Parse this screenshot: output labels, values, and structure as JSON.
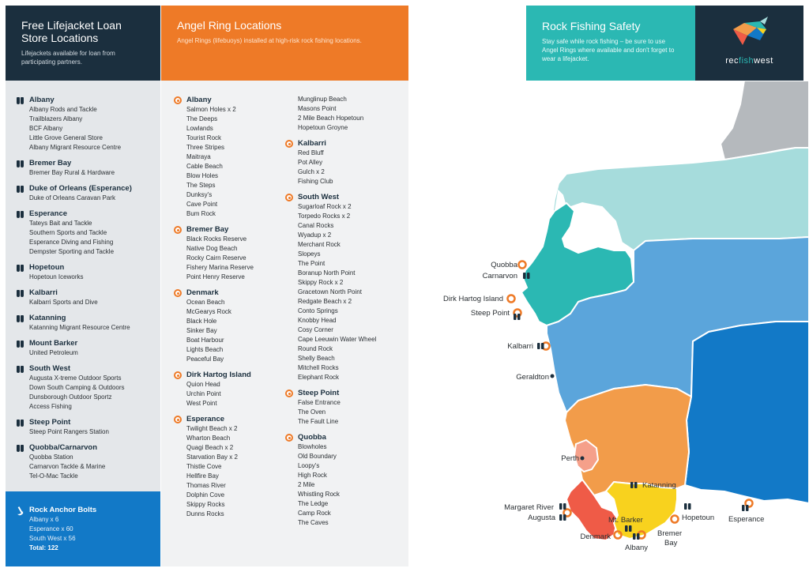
{
  "lifejacket": {
    "title": "Free Lifejacket Loan Store Locations",
    "subtitle": "Lifejackets available for loan from participating partners.",
    "groups": [
      {
        "name": "Albany",
        "items": [
          "Albany Rods and Tackle",
          "Trailblazers Albany",
          "BCF Albany",
          "Little Grove General Store",
          "Albany Migrant Resource Centre"
        ]
      },
      {
        "name": "Bremer Bay",
        "items": [
          "Bremer Bay Rural & Hardware"
        ]
      },
      {
        "name": "Duke of Orleans (Esperance)",
        "items": [
          "Duke of Orleans Caravan Park"
        ]
      },
      {
        "name": "Esperance",
        "items": [
          "Tateys Bait and Tackle",
          "Southern Sports and Tackle",
          "Esperance Diving and Fishing",
          "Dempster Sporting and Tackle"
        ]
      },
      {
        "name": "Hopetoun",
        "items": [
          "Hopetoun Iceworks"
        ]
      },
      {
        "name": "Kalbarri",
        "items": [
          "Kalbarri Sports and Dive"
        ]
      },
      {
        "name": "Katanning",
        "items": [
          "Katanning Migrant Resource Centre"
        ]
      },
      {
        "name": "Mount Barker",
        "items": [
          "United Petroleum"
        ]
      },
      {
        "name": "South West",
        "items": [
          "Augusta X-treme Outdoor Sports",
          "Down South Camping & Outdoors",
          "Dunsborough Outdoor Sportz",
          "Access Fishing"
        ]
      },
      {
        "name": "Steep Point",
        "items": [
          "Steep Point Rangers Station"
        ]
      },
      {
        "name": "Quobba/Carnarvon",
        "items": [
          "Quobba Station",
          "Carnarvon Tackle & Marine",
          "Tel-O-Mac Tackle"
        ]
      }
    ]
  },
  "anchor": {
    "title": "Rock Anchor Bolts",
    "items": [
      "Albany x 6",
      "Esperance x 60",
      "South West x 56"
    ],
    "total": "Total: 122"
  },
  "angel": {
    "title": "Angel Ring Locations",
    "subtitle": "Angel Rings (lifebuoys) installed at high-risk rock fishing locations.",
    "left_groups": [
      {
        "name": "Albany",
        "items": [
          "Salmon Holes x 2",
          "The Deeps",
          "Lowlands",
          "Tourist Rock",
          "Three Stripes",
          "Maitraya",
          "Cable Beach",
          "Blow Holes",
          "The Steps",
          "Dunksy's",
          "Cave Point",
          "Bum Rock"
        ]
      },
      {
        "name": "Bremer Bay",
        "items": [
          "Black Rocks Reserve",
          "Native Dog Beach",
          "Rocky Cairn Reserve",
          "Fishery Marina Reserve",
          "Point Henry Reserve"
        ]
      },
      {
        "name": "Denmark",
        "items": [
          "Ocean Beach",
          "McGearys Rock",
          "Black Hole",
          "Sinker Bay",
          "Boat Harbour",
          "Lights Beach",
          "Peaceful Bay"
        ]
      },
      {
        "name": "Dirk Hartog Island",
        "items": [
          "Quion Head",
          "Urchin Point",
          "West Point"
        ]
      },
      {
        "name": "Esperance",
        "items": [
          "Twilight Beach x 2",
          "Wharton Beach",
          "Quagi Beach x 2",
          "Starvation Bay x 2",
          "Thistle Cove",
          "Hellfire Bay",
          "Thomas River",
          "Dolphin Cove",
          "Skippy Rocks",
          "Dunns Rocks"
        ]
      }
    ],
    "right_top_items": [
      "Munglinup Beach",
      "Masons Point",
      "2 Mile Beach Hopetoun",
      "Hopetoun Groyne"
    ],
    "right_groups": [
      {
        "name": "Kalbarri",
        "items": [
          "Red Bluff",
          "Pot Alley",
          "Gulch x 2",
          "Fishing Club"
        ]
      },
      {
        "name": "South West",
        "items": [
          "Sugarloaf Rock x 2",
          "Torpedo Rocks x 2",
          "Canal Rocks",
          "Wyadup x 2",
          "Merchant Rock",
          "Slopeys",
          "The Point",
          "Boranup North Point",
          "Skippy Rock x 2",
          "Gracetown North Point",
          "Redgate Beach x 2",
          "Conto Springs",
          "Knobby Head",
          "Cosy Corner",
          "Cape Leeuwin Water Wheel",
          "Round Rock",
          "Shelly Beach",
          "Mitchell Rocks",
          "Elephant Rock"
        ]
      },
      {
        "name": "Steep Point",
        "items": [
          "False Entrance",
          "The Oven",
          "The Fault Line"
        ]
      },
      {
        "name": "Quobba",
        "items": [
          "Blowholes",
          "Old Boundary",
          "Loopy's",
          "High Rock",
          "2 Mile",
          "Whistling Rock",
          "The Ledge",
          "Camp Rock",
          "The Caves"
        ]
      }
    ]
  },
  "safety": {
    "title": "Rock Fishing Safety",
    "subtitle": "Stay safe while rock fishing – be sure to use Angel Rings where available and don't forget to wear a lifejacket."
  },
  "logo": {
    "part1": "rec",
    "part2": "fish",
    "part3": "west"
  },
  "map": {
    "labels": {
      "quobba": "Quobba",
      "carnarvon": "Carnarvon",
      "dirk": "Dirk Hartog Island",
      "steep": "Steep Point",
      "kalbarri": "Kalbarri",
      "geraldton": "Geraldton",
      "perth": "Perth",
      "katanning": "Katanning",
      "margaret": "Margaret River",
      "augusta": "Augusta",
      "mtbarker": "Mt. Barker",
      "hopetoun": "Hopetoun",
      "esperance": "Esperance",
      "denmark": "Denmark",
      "albany": "Albany",
      "bremer1": "Bremer",
      "bremer2": "Bay"
    },
    "colors": {
      "north": "#b5b9bd",
      "pilbara": "#a6dcdc",
      "gascoyne": "#2bb8b3",
      "midwest": "#5ba5db",
      "goldfields": "#1279c7",
      "wheatbelt": "#f29c4a",
      "southwest": "#ef5b47",
      "greatsouthern": "#f8d21e",
      "perth": "#f5a08a"
    }
  }
}
